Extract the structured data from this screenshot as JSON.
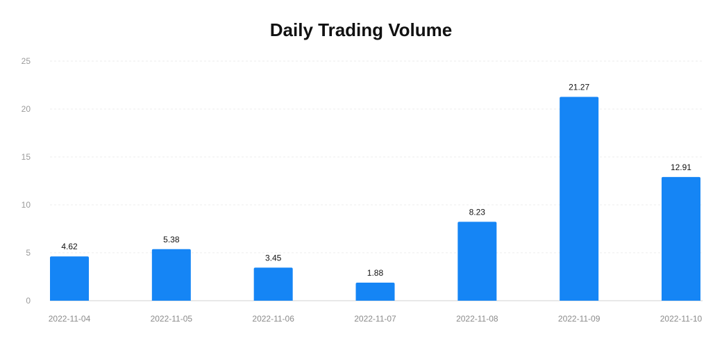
{
  "chart_data": {
    "type": "bar",
    "title": "Daily Trading Volume",
    "xlabel": "",
    "ylabel": "",
    "categories": [
      "2022-11-04",
      "2022-11-05",
      "2022-11-06",
      "2022-11-07",
      "2022-11-08",
      "2022-11-09",
      "2022-11-10"
    ],
    "values": [
      4.62,
      5.38,
      3.45,
      1.88,
      8.23,
      21.27,
      12.91
    ],
    "data_labels": [
      "4.62",
      "5.38",
      "3.45",
      "1.88",
      "8.23",
      "21.27",
      "12.91"
    ],
    "ylim": [
      0,
      25
    ],
    "yticks": [
      0,
      5,
      10,
      15,
      20,
      25
    ],
    "grid": true,
    "legend": "none",
    "bar_color": "#1585F5"
  }
}
